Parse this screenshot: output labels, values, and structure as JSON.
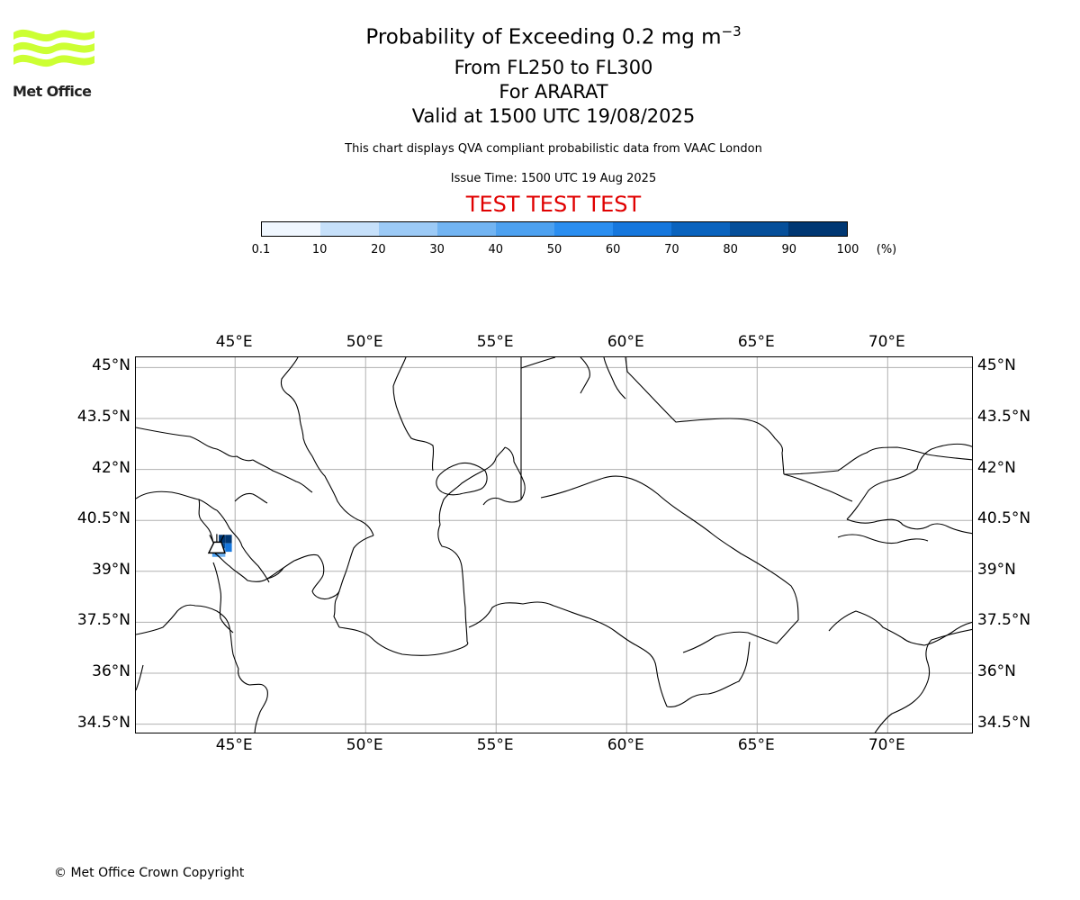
{
  "logo": {
    "text": "Met Office",
    "accent_color": "#ccff33"
  },
  "title": {
    "line1": "Probability of Exceeding 0.2 mg m",
    "line1_superscript": "−3",
    "line2": "From FL250 to FL300",
    "line3": "For ARARAT",
    "line4": "Valid at 1500 UTC 19/08/2025"
  },
  "subtitle": {
    "description": "This chart displays QVA compliant probabilistic data from VAAC London",
    "issue_time": "Issue Time: 1500 UTC 19 Aug 2025",
    "test_banner": "TEST TEST TEST",
    "test_color": "#e00000"
  },
  "legend": {
    "unit": "(%)",
    "labels": [
      "0.1",
      "10",
      "20",
      "30",
      "40",
      "50",
      "60",
      "70",
      "80",
      "90",
      "100"
    ],
    "colors": [
      "#f0f7ff",
      "#c6e0fa",
      "#9ccaf6",
      "#72b4f2",
      "#4da1f0",
      "#2b8ef0",
      "#1677dd",
      "#0a63be",
      "#064f9a",
      "#003773"
    ]
  },
  "map": {
    "lon_range": [
      41.2,
      73.3
    ],
    "lat_range": [
      34.2,
      45.3
    ],
    "lon_ticks": [
      45,
      50,
      55,
      60,
      65,
      70
    ],
    "lat_ticks": [
      45,
      43.5,
      42,
      40.5,
      39,
      37.5,
      36,
      34.5
    ],
    "lon_labels": [
      "45°E",
      "50°E",
      "55°E",
      "60°E",
      "65°E",
      "70°E"
    ],
    "lat_labels": [
      "45°N",
      "43.5°N",
      "42°N",
      "40.5°N",
      "39°N",
      "37.5°N",
      "36°N",
      "34.5°N"
    ],
    "gridlines": true,
    "volcano_marker": {
      "lon": 44.3,
      "lat": 39.7
    },
    "probability_cells": [
      {
        "lon": 44.5,
        "lat": 39.95,
        "prob": 95
      },
      {
        "lon": 44.75,
        "lat": 39.95,
        "prob": 95
      },
      {
        "lon": 44.5,
        "lat": 39.7,
        "prob": 85
      },
      {
        "lon": 44.75,
        "lat": 39.7,
        "prob": 65
      },
      {
        "lon": 44.25,
        "lat": 39.55,
        "prob": 45
      },
      {
        "lon": 44.5,
        "lat": 39.55,
        "prob": 35
      }
    ]
  },
  "footer": {
    "copyright": "© Met Office Crown Copyright"
  }
}
